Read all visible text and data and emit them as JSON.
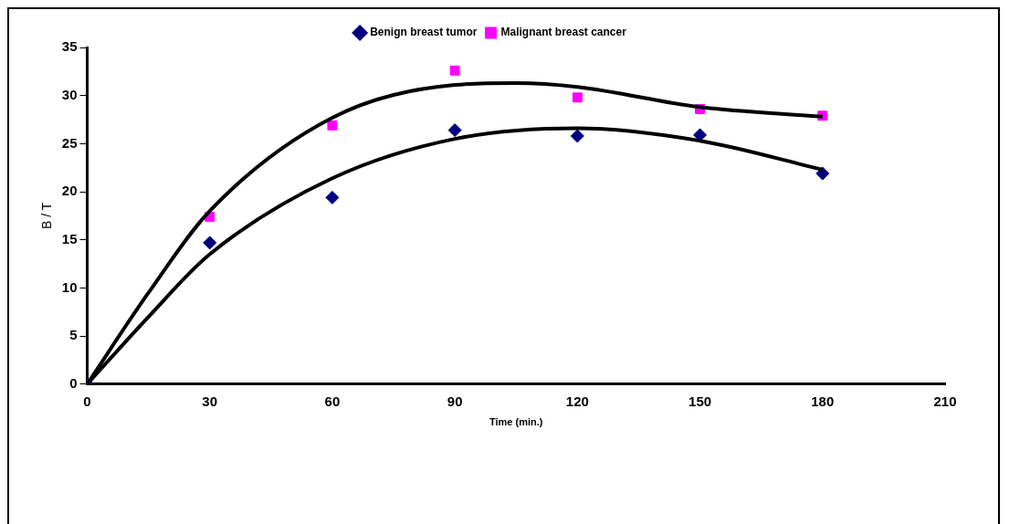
{
  "chart_data": {
    "type": "scatter",
    "xlabel": "Time (min.)",
    "ylabel": "B / T",
    "xlim": [
      0,
      210
    ],
    "xticks": [
      0,
      30,
      60,
      90,
      120,
      150,
      180,
      210
    ],
    "ylim": [
      0,
      35
    ],
    "yticks": [
      0,
      5,
      10,
      15,
      20,
      25,
      30,
      35
    ],
    "grid": false,
    "legend": "top",
    "series": [
      {
        "name": "Benign breast tumor",
        "type": "scatter",
        "marker": "diamond",
        "color": "#000080",
        "x": [
          0,
          30,
          60,
          90,
          120,
          150,
          180
        ],
        "values": [
          0,
          14.7,
          19.4,
          26.4,
          25.8,
          25.9,
          21.9
        ]
      },
      {
        "name": "Malignant breast cancer",
        "type": "scatter",
        "marker": "square",
        "color": "#ff00ff",
        "x": [
          0,
          30,
          60,
          90,
          120,
          150,
          180
        ],
        "values": [
          0,
          17.4,
          26.9,
          32.6,
          29.8,
          28.6,
          27.9
        ]
      },
      {
        "type": "line",
        "marker": "none",
        "color": "#000000",
        "x": [
          0,
          15,
          30,
          60,
          90,
          120,
          150,
          180
        ],
        "values": [
          0,
          7,
          13.5,
          21.4,
          25.5,
          26.6,
          25.3,
          22.3
        ]
      },
      {
        "type": "line",
        "marker": "none",
        "color": "#000000",
        "x": [
          0,
          15,
          30,
          60,
          90,
          105,
          120,
          150,
          180
        ],
        "values": [
          0,
          9.5,
          18.0,
          27.7,
          31.1,
          31.3,
          30.9,
          28.8,
          27.8
        ]
      }
    ]
  }
}
